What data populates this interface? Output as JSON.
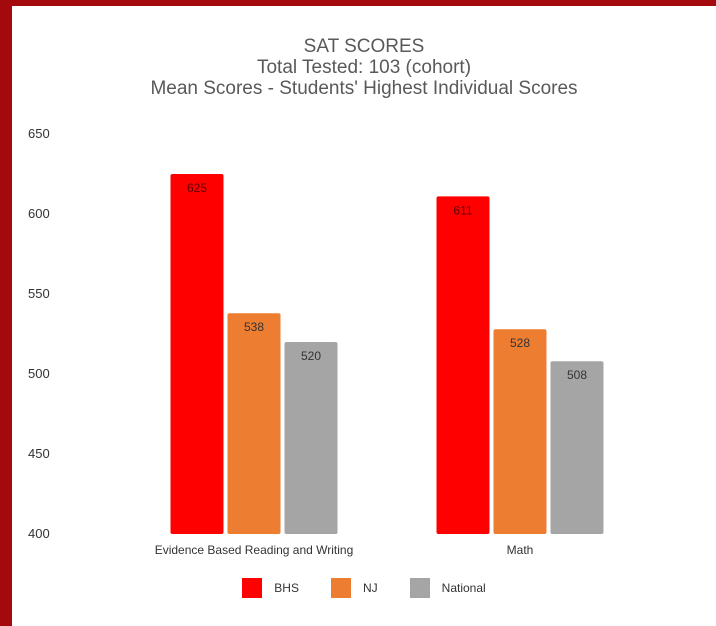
{
  "chart_data": {
    "type": "bar",
    "title_lines": [
      "SAT SCORES",
      "Total Tested:  103 (cohort)",
      "Mean Scores - Students' Highest Individual Scores"
    ],
    "categories": [
      "Evidence Based Reading and Writing",
      "Math"
    ],
    "series": [
      {
        "name": "BHS",
        "color": "#ff0000",
        "values": [
          625,
          611
        ]
      },
      {
        "name": "NJ",
        "color": "#ed7d31",
        "values": [
          538,
          528
        ]
      },
      {
        "name": "National",
        "color": "#a5a5a5",
        "values": [
          520,
          508
        ]
      }
    ],
    "ylim": [
      400,
      650
    ],
    "yticks": [
      400,
      450,
      500,
      550,
      600,
      650
    ],
    "grid": false,
    "legend_position": "bottom"
  }
}
